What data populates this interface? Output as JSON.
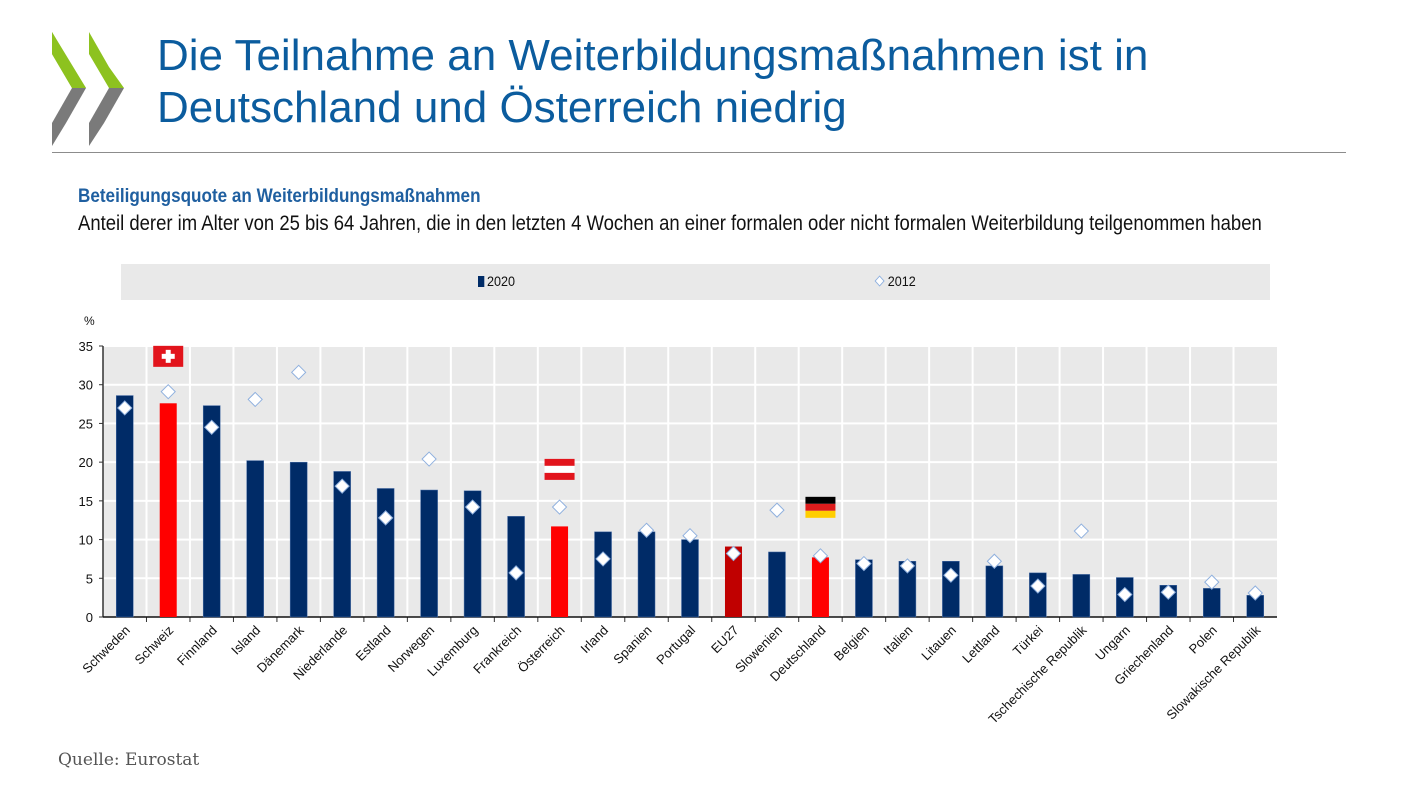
{
  "header": {
    "title_line1": "Die Teilnahme an Weiterbildungsmaßnahmen ist in",
    "title_line2": "Deutschland und Österreich niedrig"
  },
  "figure": {
    "subtitle": "Beteiligungsquote an Weiterbildungsmaßnahmen",
    "description": "Anteil derer im Alter von 25 bis 64 Jahren, die in den letzten 4 Wochen an einer formalen oder nicht formalen Weiterbildung teilgenommen haben",
    "source": "Quelle: Eurostat"
  },
  "colors": {
    "bar_default": "#002b67",
    "bar_highlight": "#ff0000",
    "bar_eu": "#c00000",
    "plot_bg": "#e9e9e9",
    "title": "#0b5c9e",
    "logo_green": "#8dc21f",
    "logo_grey": "#7a7a7a"
  },
  "chart_data": {
    "type": "bar",
    "title": "Beteiligungsquote an Weiterbildungsmaßnahmen",
    "xlabel": "",
    "ylabel": "%",
    "ylim": [
      0,
      35
    ],
    "yticks": [
      0,
      5,
      10,
      15,
      20,
      25,
      30,
      35
    ],
    "grid": true,
    "legend_position": "top",
    "legend": [
      {
        "name": "2020",
        "marker": "bar"
      },
      {
        "name": "2012",
        "marker": "diamond"
      }
    ],
    "categories": [
      "Schweden",
      "Schweiz",
      "Finnland",
      "Island",
      "Dänemark",
      "Niederlande",
      "Estland",
      "Norwegen",
      "Luxemburg",
      "Frankreich",
      "Österreich",
      "Irland",
      "Spanien",
      "Portugal",
      "EU27",
      "Slowenien",
      "Deutschland",
      "Belgien",
      "Italien",
      "Litauen",
      "Lettland",
      "Türkei",
      "Tschechische Republik",
      "Ungarn",
      "Griechenland",
      "Polen",
      "Slowakische Republik"
    ],
    "series": [
      {
        "name": "2020",
        "type": "bar",
        "values": [
          28.6,
          27.6,
          27.3,
          20.2,
          20.0,
          18.8,
          16.6,
          16.4,
          16.3,
          13.0,
          11.7,
          11.0,
          11.0,
          10.0,
          9.1,
          8.4,
          7.7,
          7.4,
          7.2,
          7.2,
          6.6,
          5.7,
          5.5,
          5.1,
          4.1,
          3.7,
          2.8
        ],
        "highlight": {
          "Schweiz": "bar_highlight",
          "Österreich": "bar_highlight",
          "Deutschland": "bar_highlight",
          "EU27": "bar_eu"
        }
      },
      {
        "name": "2012",
        "type": "diamond",
        "values": [
          27.0,
          29.1,
          24.5,
          28.1,
          31.6,
          16.9,
          12.8,
          20.4,
          14.2,
          5.7,
          14.2,
          7.5,
          11.2,
          10.5,
          8.2,
          13.8,
          7.9,
          6.9,
          6.6,
          5.4,
          7.2,
          4.0,
          11.1,
          2.9,
          3.2,
          4.5,
          3.1
        ]
      }
    ],
    "flags": [
      {
        "category": "Schweiz",
        "flag": "switzerland-flag",
        "value_position": 33.6
      },
      {
        "category": "Österreich",
        "flag": "austria-flag",
        "value_position": 19.0
      },
      {
        "category": "Deutschland",
        "flag": "germany-flag",
        "value_position": 14.1
      }
    ]
  }
}
